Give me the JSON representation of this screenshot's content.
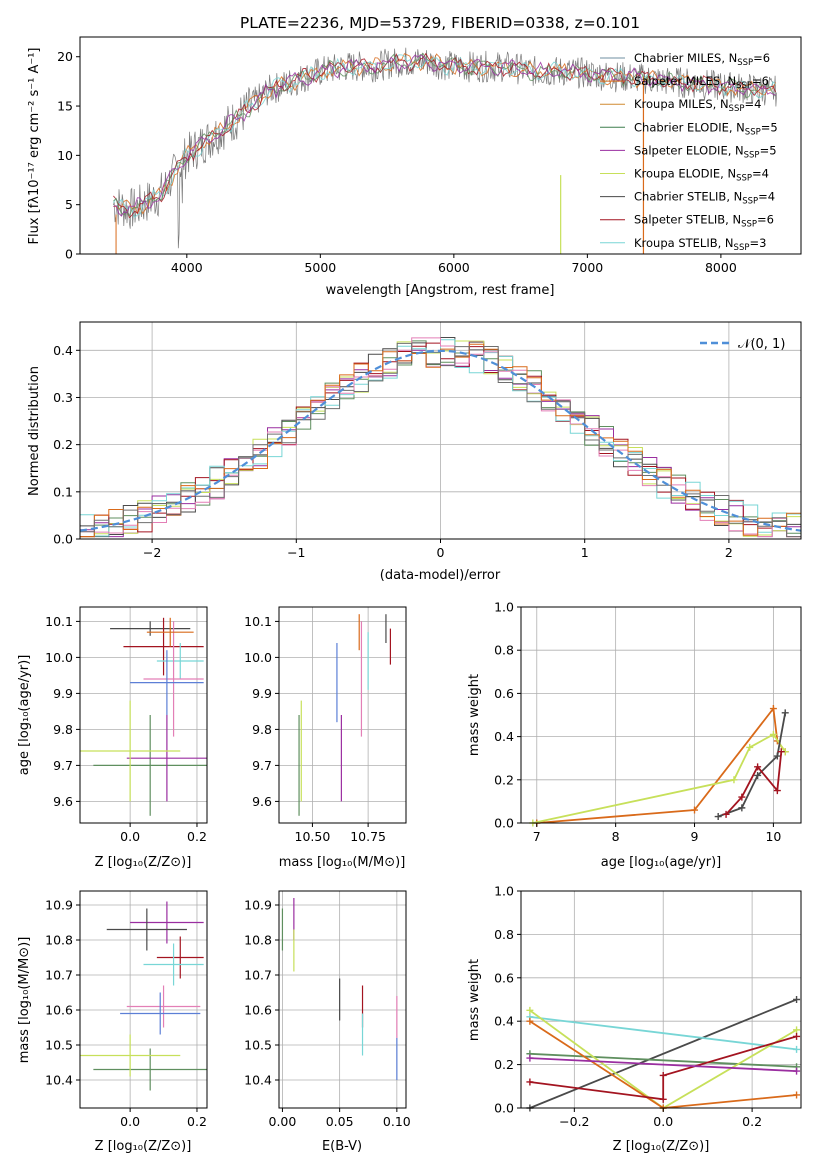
{
  "title": "PLATE=2236, MJD=53729, FIBERID=0338, z=0.101",
  "colors": [
    "#5f8f5f",
    "#9a2ea0",
    "#c7e05a",
    "#4a4a4a",
    "#a31420",
    "#78d6d6",
    "#e37fb6",
    "#5c7fd6",
    "#d96a1a",
    "#666666"
  ],
  "panel1": {
    "xlabel": "wavelength [Angstrom, rest frame]",
    "ylabel": "Flux [fλ10⁻¹⁷ erg cm⁻² s⁻¹ A⁻¹]",
    "xlim": [
      3200,
      8600
    ],
    "ylim": [
      0,
      22
    ],
    "xticks": [
      "4000",
      "5000",
      "6000",
      "7000",
      "8000"
    ],
    "yticks": [
      "0",
      "5",
      "10",
      "15",
      "20"
    ],
    "legend": [
      {
        "label": "Chabrier MILES, N",
        "sub": "SSP",
        "tail": "=6",
        "color": "#6f8fa0"
      },
      {
        "label": "Salpeter MILES, N",
        "sub": "SSP",
        "tail": "=6",
        "color": "#d96a1a"
      },
      {
        "label": "Kroupa MILES, N",
        "sub": "SSP",
        "tail": "=4",
        "color": "#d08a30"
      },
      {
        "label": "Chabrier ELODIE, N",
        "sub": "SSP",
        "tail": "=5",
        "color": "#3f7f4f"
      },
      {
        "label": "Salpeter ELODIE, N",
        "sub": "SSP",
        "tail": "=5",
        "color": "#9a2ea0"
      },
      {
        "label": "Kroupa ELODIE, N",
        "sub": "SSP",
        "tail": "=4",
        "color": "#c7e05a"
      },
      {
        "label": "Chabrier STELIB, N",
        "sub": "SSP",
        "tail": "=4",
        "color": "#4a4a4a"
      },
      {
        "label": "Salpeter STELIB, N",
        "sub": "SSP",
        "tail": "=6",
        "color": "#a31420"
      },
      {
        "label": "Kroupa STELIB, N",
        "sub": "SSP",
        "tail": "=3",
        "color": "#78d6d6"
      }
    ]
  },
  "panel2": {
    "xlabel": "(data-model)/error",
    "ylabel": "Normed distribution",
    "legend": "𝒩(0, 1)",
    "xlim": [
      -2.5,
      2.5
    ],
    "ylim": [
      0,
      0.46
    ],
    "xticks": [
      "−2",
      "−1",
      "0",
      "1",
      "2"
    ],
    "yticks": [
      "0.0",
      "0.1",
      "0.2",
      "0.3",
      "0.4"
    ]
  },
  "panel3": {
    "xlabel": "Z [log₁₀(Z/Z⊙)]",
    "ylabel": "age  [log₁₀(age/yr)]",
    "xticks": [
      "0.0",
      "0.2"
    ],
    "yticks": [
      "9.6",
      "9.7",
      "9.8",
      "9.9",
      "10.0",
      "10.1"
    ]
  },
  "panel4": {
    "xlabel": "mass [log₁₀(M/M⊙)]",
    "xticks": [
      "10.50",
      "10.75"
    ],
    "yticks": [
      "9.6",
      "9.7",
      "9.8",
      "9.9",
      "10.0",
      "10.1"
    ]
  },
  "panel5": {
    "xlabel": "age  [log₁₀(age/yr)]",
    "ylabel": "mass weight",
    "xticks": [
      "7",
      "8",
      "9",
      "10"
    ],
    "yticks": [
      "0.0",
      "0.2",
      "0.4",
      "0.6",
      "0.8",
      "1.0"
    ]
  },
  "panel6": {
    "xlabel": "Z [log₁₀(Z/Z⊙)]",
    "ylabel": "mass [log₁₀(M/M⊙)]",
    "xticks": [
      "0.0",
      "0.2"
    ],
    "yticks": [
      "10.4",
      "10.5",
      "10.6",
      "10.7",
      "10.8",
      "10.9"
    ]
  },
  "panel7": {
    "xlabel": "E(B-V)",
    "xticks": [
      "0.00",
      "0.05",
      "0.10"
    ],
    "yticks": [
      "10.4",
      "10.5",
      "10.6",
      "10.7",
      "10.8",
      "10.9"
    ]
  },
  "panel8": {
    "xlabel": "Z [log₁₀(Z/Z⊙)]",
    "ylabel": "mass weight",
    "xticks": [
      "−0.2",
      "0.0",
      "0.2"
    ],
    "yticks": [
      "0.0",
      "0.2",
      "0.4",
      "0.6",
      "0.8",
      "1.0"
    ]
  },
  "chart_data": [
    {
      "type": "line",
      "title": "PLATE=2236, MJD=53729, FIBERID=0338, z=0.101",
      "xlabel": "wavelength [Angstrom, rest frame]",
      "xlim": [
        3200,
        8600
      ],
      "ylim": [
        0,
        22
      ],
      "x": [
        3450,
        3600,
        3800,
        4000,
        4200,
        4400,
        4600,
        4800,
        5000,
        5200,
        5400,
        5600,
        5800,
        6000,
        6200,
        6400,
        6600,
        6800,
        7000,
        7200,
        7400,
        7600,
        7800,
        8000,
        8200,
        8400
      ],
      "series": [
        {
          "values": [
            5,
            4.5,
            6,
            10,
            12,
            14,
            16.5,
            17.5,
            18.5,
            19,
            19,
            19.5,
            19.5,
            19,
            19,
            19,
            18.5,
            18.5,
            18.3,
            18,
            17.8,
            17.5,
            17.3,
            17,
            16.8,
            16.5
          ]
        }
      ]
    },
    {
      "type": "line",
      "xlabel": "(data-model)/error",
      "ylabel": "Normed distribution",
      "xlim": [
        -2.5,
        2.5
      ],
      "ylim": [
        0,
        0.46
      ],
      "series": [
        {
          "name": "𝒩(0, 1)",
          "x": [
            -2.5,
            -2,
            -1.5,
            -1,
            -0.5,
            0,
            0.5,
            1,
            1.5,
            2,
            2.5
          ],
          "values": [
            0.018,
            0.054,
            0.13,
            0.242,
            0.352,
            0.399,
            0.352,
            0.242,
            0.13,
            0.054,
            0.018
          ]
        }
      ]
    },
    {
      "type": "scatter",
      "xlabel": "Z [log₁₀(Z/Z⊙)]",
      "ylabel": "age  [log₁₀(age/yr)]",
      "xlim": [
        -0.15,
        0.23
      ],
      "ylim": [
        9.54,
        10.14
      ],
      "points": [
        {
          "x": 0.06,
          "y": 9.7,
          "xerr": 0.17,
          "yerr": 0.14
        },
        {
          "x": 0.11,
          "y": 9.72,
          "xerr": 0.12,
          "yerr": 0.12
        },
        {
          "x": 0.0,
          "y": 9.74,
          "xerr": 0.15,
          "yerr": 0.14
        },
        {
          "x": 0.06,
          "y": 10.08,
          "xerr": 0.12,
          "yerr": 0.02
        },
        {
          "x": 0.1,
          "y": 10.03,
          "xerr": 0.12,
          "yerr": 0.08
        },
        {
          "x": 0.15,
          "y": 9.99,
          "xerr": 0.07,
          "yerr": 0.05
        },
        {
          "x": 0.13,
          "y": 9.94,
          "xerr": 0.09,
          "yerr": 0.16
        },
        {
          "x": 0.11,
          "y": 9.93,
          "xerr": 0.11,
          "yerr": 0.09
        },
        {
          "x": 0.12,
          "y": 10.07,
          "xerr": 0.07,
          "yerr": 0.04
        }
      ]
    },
    {
      "type": "scatter",
      "xlabel": "mass [log₁₀(M/M⊙)]",
      "xlim": [
        10.35,
        10.92
      ],
      "ylim": [
        9.54,
        10.14
      ],
      "points": [
        {
          "x": 10.44,
          "y": 9.7,
          "yerr": 0.14
        },
        {
          "x": 10.63,
          "y": 9.72,
          "yerr": 0.12
        },
        {
          "x": 10.45,
          "y": 9.74,
          "yerr": 0.14
        },
        {
          "x": 10.83,
          "y": 10.08,
          "yerr": 0.04
        },
        {
          "x": 10.85,
          "y": 10.03,
          "yerr": 0.05
        },
        {
          "x": 10.75,
          "y": 9.99,
          "yerr": 0.08
        },
        {
          "x": 10.72,
          "y": 9.94,
          "yerr": 0.16
        },
        {
          "x": 10.61,
          "y": 9.93,
          "yerr": 0.11
        },
        {
          "x": 10.71,
          "y": 10.07,
          "yerr": 0.05
        }
      ]
    },
    {
      "type": "line",
      "xlabel": "age  [log₁₀(age/yr)]",
      "ylabel": "mass weight",
      "xlim": [
        6.8,
        10.35
      ],
      "ylim": [
        0,
        1
      ],
      "series": [
        {
          "x": [
            7,
            9,
            10.0,
            10.05,
            10.15
          ],
          "values": [
            0.0,
            0.06,
            0.53,
            0.38,
            0.33
          ]
        },
        {
          "x": [
            6.95,
            9.5,
            9.7,
            10.0,
            10.15
          ],
          "values": [
            0.0,
            0.2,
            0.35,
            0.41,
            0.33
          ]
        },
        {
          "x": [
            9.3,
            9.6,
            9.8,
            10.05,
            10.15
          ],
          "values": [
            0.03,
            0.07,
            0.22,
            0.31,
            0.51
          ]
        },
        {
          "x": [
            9.4,
            9.6,
            9.8,
            10.05,
            10.1
          ],
          "values": [
            0.04,
            0.12,
            0.26,
            0.15,
            0.33
          ]
        }
      ]
    },
    {
      "type": "scatter",
      "xlabel": "Z [log₁₀(Z/Z⊙)]",
      "ylabel": "mass [log₁₀(M/M⊙)]",
      "xlim": [
        -0.15,
        0.23
      ],
      "ylim": [
        10.32,
        10.94
      ],
      "points": [
        {
          "x": 0.06,
          "y": 10.43,
          "xerr": 0.17
        },
        {
          "x": 0.11,
          "y": 10.85,
          "xerr": 0.11
        },
        {
          "x": 0.0,
          "y": 10.47,
          "xerr": 0.15
        },
        {
          "x": 0.05,
          "y": 10.83,
          "xerr": 0.12
        },
        {
          "x": 0.15,
          "y": 10.75,
          "xerr": 0.07
        },
        {
          "x": 0.13,
          "y": 10.73,
          "xerr": 0.09
        },
        {
          "x": 0.1,
          "y": 10.61,
          "xerr": 0.11
        },
        {
          "x": 0.09,
          "y": 10.59,
          "xerr": 0.12
        }
      ]
    },
    {
      "type": "scatter",
      "xlabel": "E(B-V)",
      "xlim": [
        -0.003,
        0.108
      ],
      "ylim": [
        10.32,
        10.94
      ],
      "points": [
        {
          "x": 0.0,
          "y": 10.83
        },
        {
          "x": 0.01,
          "y": 10.86
        },
        {
          "x": 0.01,
          "y": 10.77
        },
        {
          "x": 0.05,
          "y": 10.63
        },
        {
          "x": 0.07,
          "y": 10.61
        },
        {
          "x": 0.07,
          "y": 10.53
        },
        {
          "x": 0.1,
          "y": 10.58
        },
        {
          "x": 0.1,
          "y": 10.46
        }
      ]
    },
    {
      "type": "line",
      "xlabel": "Z [log₁₀(Z/Z⊙)]",
      "ylabel": "mass weight",
      "xlim": [
        -0.32,
        0.31
      ],
      "ylim": [
        0,
        1
      ],
      "series": [
        {
          "x": [
            -0.3,
            0.3
          ],
          "values": [
            0.0,
            0.5
          ]
        },
        {
          "x": [
            -0.3,
            0.3
          ],
          "values": [
            0.42,
            0.27
          ]
        },
        {
          "x": [
            -0.3,
            0.3
          ],
          "values": [
            0.25,
            0.19
          ]
        },
        {
          "x": [
            -0.3,
            0,
            0,
            0.3
          ],
          "values": [
            0.45,
            0.0,
            0.0,
            0.36
          ]
        },
        {
          "x": [
            -0.3,
            0,
            0.3
          ],
          "values": [
            0.4,
            0.0,
            0.06
          ]
        },
        {
          "x": [
            -0.3,
            0,
            0,
            0.3
          ],
          "values": [
            0.12,
            0.04,
            0.15,
            0.33
          ]
        },
        {
          "x": [
            -0.3,
            0.3
          ],
          "values": [
            0.23,
            0.17
          ]
        }
      ]
    }
  ]
}
